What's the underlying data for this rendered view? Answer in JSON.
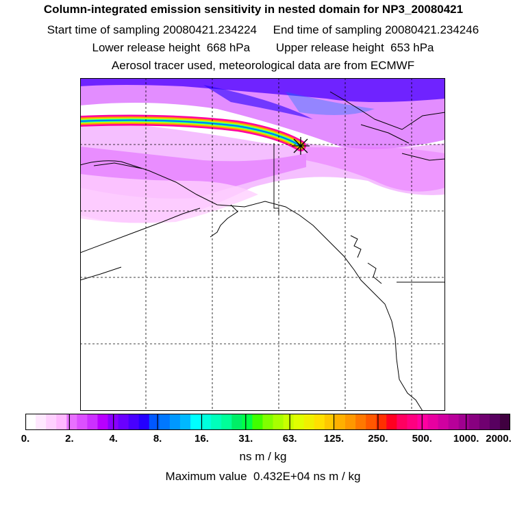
{
  "header": {
    "title": "Column-integrated emission sensitivity in nested domain for NP3_20080421",
    "sampling_line": "Start time of sampling 20080421.234224     End time of sampling 20080421.234246",
    "release_line": "Lower release height  668 hPa        Upper release height  653 hPa",
    "tracer_line": "Aerosol tracer used, meteorological data are from ECMWF"
  },
  "colorbar": {
    "tick_labels": [
      "0.",
      "2.",
      "4.",
      "8.",
      "16.",
      "31.",
      "63.",
      "125.",
      "250.",
      "500.",
      "1000.",
      "2000."
    ],
    "colors": [
      "#ffffff",
      "#ffe8ff",
      "#ffd0ff",
      "#ffb8ff",
      "#e870ff",
      "#dc50ff",
      "#cc30ff",
      "#b800ff",
      "#8a00ff",
      "#6a00ff",
      "#4800ff",
      "#2400ff",
      "#0058ff",
      "#0078ff",
      "#0098ff",
      "#00b8ff",
      "#00ffff",
      "#00ffdd",
      "#00ffbb",
      "#00ff99",
      "#00ee66",
      "#00ff44",
      "#40ff00",
      "#80ff00",
      "#a8ff00",
      "#c8ff00",
      "#e0ff00",
      "#f0f000",
      "#ffe000",
      "#ffc800",
      "#ffb000",
      "#ff9800",
      "#ff7800",
      "#ff5800",
      "#ff3000",
      "#ff0020",
      "#ff0060",
      "#ff0080",
      "#ff00a0",
      "#e800a0",
      "#d000a0",
      "#b8009a",
      "#a00090",
      "#880080",
      "#700070",
      "#580060",
      "#400040"
    ],
    "units": "ns m / kg"
  },
  "max_value_label": "Maximum value  0.432E+04 ns m / kg",
  "map": {
    "receptor_marker": "asterisk",
    "projection_grid": "dashed lat-lon grid"
  }
}
